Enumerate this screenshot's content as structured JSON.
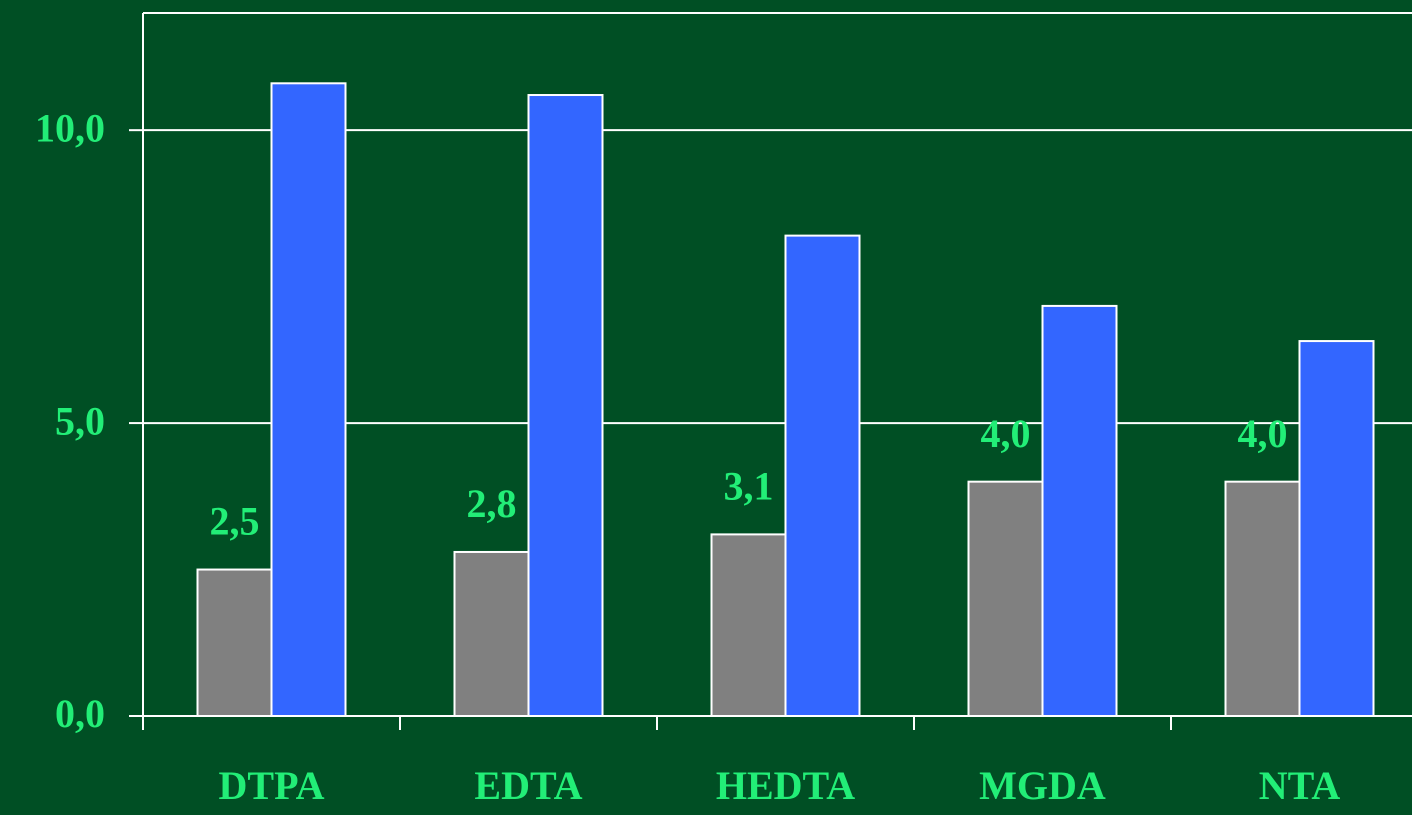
{
  "chart_data": {
    "type": "bar",
    "categories": [
      "DTPA",
      "EDTA",
      "HEDTA",
      "MGDA",
      "NTA"
    ],
    "series": [
      {
        "color": "#808080",
        "values": [
          2.5,
          2.8,
          3.1,
          4.0,
          4.0
        ],
        "value_labels": [
          "2,5",
          "2,8",
          "3,1",
          "4,0",
          "4,0"
        ]
      },
      {
        "color": "#3366ff",
        "values": [
          10.8,
          10.6,
          8.2,
          7.0,
          6.4
        ]
      }
    ],
    "ylim": [
      0,
      12
    ],
    "yticks": [
      {
        "value": 0,
        "label": "0,0"
      },
      {
        "value": 5,
        "label": "5,0"
      },
      {
        "value": 10,
        "label": "10,0"
      }
    ],
    "grid": true
  }
}
